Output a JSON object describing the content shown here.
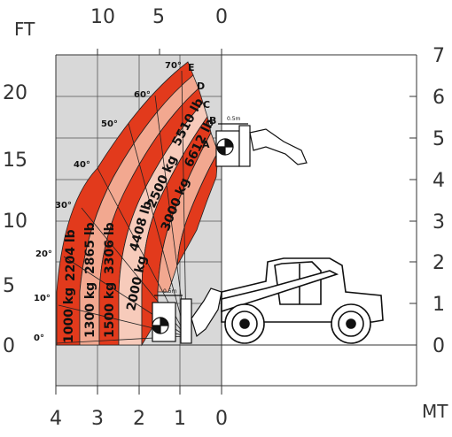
{
  "units": {
    "left": "FT",
    "right": "MT"
  },
  "top_ticks": [
    "10",
    "5",
    "0"
  ],
  "bottom_ticks": [
    "4",
    "3",
    "2",
    "1",
    "0"
  ],
  "left_ticks": [
    "20",
    "15",
    "10",
    "5",
    "0"
  ],
  "right_ticks": [
    "7",
    "6",
    "5",
    "4",
    "3",
    "2",
    "1",
    "0"
  ],
  "angles": [
    "70°",
    "60°",
    "50°",
    "40°",
    "30°",
    "20°",
    "10°",
    "0°"
  ],
  "zones": [
    "E",
    "D",
    "C",
    "B",
    "A"
  ],
  "load_labels": [
    "1000 kg",
    "2204 lb",
    "1300 kg",
    "2865 lb",
    "1500 kg",
    "3306 lb",
    "2000 kg",
    "4408 lb",
    "2500 kg",
    "5510 lb",
    "3000 kg",
    "6612 lb"
  ],
  "attach_label_top": "0.5m",
  "attach_label_bottom": "0.5m",
  "colors": {
    "grid_bg": "#d8d8d8",
    "grid_line": "#2a2a2a",
    "zone_dark": "#e23a1c",
    "zone_light": "#f2a890",
    "zone_pale": "#f7cbbb",
    "outline": "#111111"
  }
}
